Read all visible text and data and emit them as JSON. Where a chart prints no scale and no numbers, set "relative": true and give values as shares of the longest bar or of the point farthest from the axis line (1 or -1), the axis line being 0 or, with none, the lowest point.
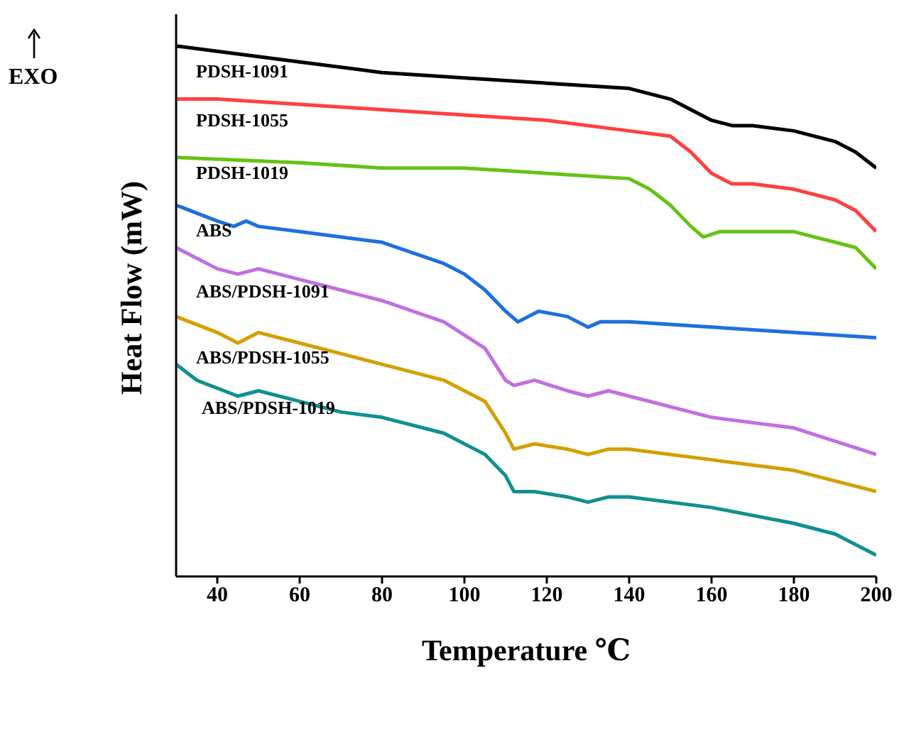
{
  "chart_data": {
    "type": "line",
    "relative": true,
    "xlabel": "Temperature ℃",
    "ylabel": "Heat Flow (mW)",
    "annotations": [
      "EXO"
    ],
    "xlim": [
      30,
      200
    ],
    "xticks": [
      40,
      60,
      80,
      100,
      120,
      140,
      160,
      180,
      200
    ],
    "marker": "none",
    "line_style": "solid",
    "series": [
      {
        "name": "PDSH-1091",
        "color": "#000000",
        "x": [
          30,
          40,
          60,
          80,
          100,
          120,
          140,
          150,
          155,
          160,
          165,
          170,
          180,
          190,
          195,
          200
        ],
        "values": [
          1.0,
          0.99,
          0.97,
          0.95,
          0.94,
          0.93,
          0.92,
          0.9,
          0.88,
          0.86,
          0.85,
          0.85,
          0.84,
          0.82,
          0.8,
          0.77
        ]
      },
      {
        "name": "PDSH-1055",
        "color": "#ff4040",
        "x": [
          30,
          40,
          60,
          80,
          100,
          120,
          140,
          150,
          155,
          160,
          165,
          170,
          180,
          190,
          195,
          200
        ],
        "values": [
          0.9,
          0.9,
          0.89,
          0.88,
          0.87,
          0.86,
          0.84,
          0.83,
          0.8,
          0.76,
          0.74,
          0.74,
          0.73,
          0.71,
          0.69,
          0.65
        ]
      },
      {
        "name": "PDSH-1019",
        "color": "#66c214",
        "x": [
          30,
          60,
          80,
          100,
          120,
          140,
          145,
          150,
          155,
          158,
          162,
          170,
          180,
          190,
          195,
          200
        ],
        "values": [
          0.79,
          0.78,
          0.77,
          0.77,
          0.76,
          0.75,
          0.73,
          0.7,
          0.66,
          0.64,
          0.65,
          0.65,
          0.65,
          0.63,
          0.62,
          0.58
        ]
      },
      {
        "name": "ABS",
        "color": "#1f6fdf",
        "x": [
          30,
          40,
          44,
          47,
          50,
          60,
          80,
          95,
          100,
          105,
          110,
          113,
          118,
          125,
          130,
          133,
          140,
          160,
          180,
          200
        ],
        "values": [
          0.7,
          0.67,
          0.66,
          0.67,
          0.66,
          0.65,
          0.63,
          0.59,
          0.57,
          0.54,
          0.5,
          0.48,
          0.5,
          0.49,
          0.47,
          0.48,
          0.48,
          0.47,
          0.46,
          0.45
        ]
      },
      {
        "name": "ABS/PDSH-1091",
        "color": "#c070e0",
        "x": [
          30,
          40,
          45,
          50,
          60,
          70,
          80,
          95,
          105,
          110,
          112,
          117,
          125,
          130,
          135,
          140,
          160,
          180,
          200
        ],
        "values": [
          0.62,
          0.58,
          0.57,
          0.58,
          0.56,
          0.54,
          0.52,
          0.48,
          0.43,
          0.37,
          0.36,
          0.37,
          0.35,
          0.34,
          0.35,
          0.34,
          0.3,
          0.28,
          0.23
        ]
      },
      {
        "name": "ABS/PDSH-1055",
        "color": "#d4a000",
        "x": [
          30,
          40,
          45,
          50,
          60,
          70,
          80,
          95,
          105,
          110,
          112,
          117,
          125,
          130,
          135,
          140,
          160,
          180,
          200
        ],
        "values": [
          0.49,
          0.46,
          0.44,
          0.46,
          0.44,
          0.42,
          0.4,
          0.37,
          0.33,
          0.27,
          0.24,
          0.25,
          0.24,
          0.23,
          0.24,
          0.24,
          0.22,
          0.2,
          0.16
        ]
      },
      {
        "name": "ABS/PDSH-1019",
        "color": "#109090",
        "x": [
          30,
          35,
          45,
          50,
          60,
          70,
          80,
          95,
          105,
          110,
          112,
          117,
          125,
          130,
          135,
          140,
          160,
          180,
          190,
          200
        ],
        "values": [
          0.4,
          0.37,
          0.34,
          0.35,
          0.33,
          0.31,
          0.3,
          0.27,
          0.23,
          0.19,
          0.16,
          0.16,
          0.15,
          0.14,
          0.15,
          0.15,
          0.13,
          0.1,
          0.08,
          0.04
        ]
      }
    ]
  }
}
